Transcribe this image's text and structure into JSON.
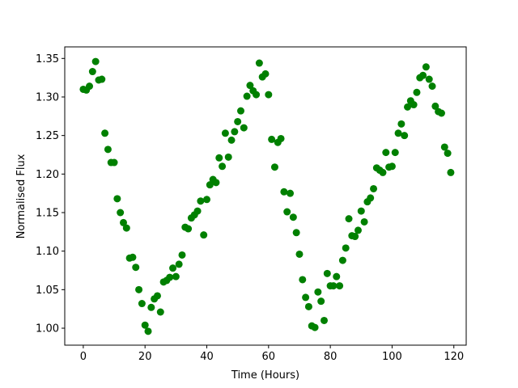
{
  "chart_data": {
    "type": "scatter",
    "xlabel": "Time (Hours)",
    "ylabel": "Normalised Flux",
    "xlim": [
      -6,
      124
    ],
    "ylim": [
      0.978,
      1.365
    ],
    "xticks": [
      0,
      20,
      40,
      60,
      80,
      100,
      120
    ],
    "xtick_labels": [
      "0",
      "20",
      "40",
      "60",
      "80",
      "100",
      "120"
    ],
    "yticks": [
      1.0,
      1.05,
      1.1,
      1.15,
      1.2,
      1.25,
      1.3,
      1.35
    ],
    "ytick_labels": [
      "1.00",
      "1.05",
      "1.10",
      "1.15",
      "1.20",
      "1.25",
      "1.30",
      "1.35"
    ],
    "grid": false,
    "marker_color": "#008000",
    "series": [
      {
        "points": [
          [
            0,
            1.31
          ],
          [
            1,
            1.309
          ],
          [
            2,
            1.314
          ],
          [
            3,
            1.333
          ],
          [
            4,
            1.346
          ],
          [
            5,
            1.322
          ],
          [
            6,
            1.323
          ],
          [
            7,
            1.253
          ],
          [
            8,
            1.232
          ],
          [
            9,
            1.215
          ],
          [
            10,
            1.215
          ],
          [
            11,
            1.168
          ],
          [
            12,
            1.15
          ],
          [
            13,
            1.137
          ],
          [
            14,
            1.13
          ],
          [
            15,
            1.091
          ],
          [
            16,
            1.092
          ],
          [
            17,
            1.079
          ],
          [
            18,
            1.05
          ],
          [
            19,
            1.032
          ],
          [
            20,
            1.004
          ],
          [
            21,
            0.996
          ],
          [
            22,
            1.027
          ],
          [
            23,
            1.038
          ],
          [
            24,
            1.042
          ],
          [
            25,
            1.021
          ],
          [
            26,
            1.06
          ],
          [
            27,
            1.062
          ],
          [
            28,
            1.066
          ],
          [
            29,
            1.078
          ],
          [
            30,
            1.067
          ],
          [
            31,
            1.083
          ],
          [
            32,
            1.095
          ],
          [
            33,
            1.131
          ],
          [
            34,
            1.129
          ],
          [
            35,
            1.143
          ],
          [
            36,
            1.147
          ],
          [
            37,
            1.152
          ],
          [
            38,
            1.165
          ],
          [
            39,
            1.121
          ],
          [
            40,
            1.167
          ],
          [
            41,
            1.186
          ],
          [
            42,
            1.193
          ],
          [
            43,
            1.189
          ],
          [
            44,
            1.221
          ],
          [
            45,
            1.21
          ],
          [
            46,
            1.253
          ],
          [
            47,
            1.222
          ],
          [
            48,
            1.244
          ],
          [
            49,
            1.255
          ],
          [
            50,
            1.268
          ],
          [
            51,
            1.282
          ],
          [
            52,
            1.26
          ],
          [
            53,
            1.301
          ],
          [
            54,
            1.315
          ],
          [
            55,
            1.308
          ],
          [
            56,
            1.303
          ],
          [
            57,
            1.344
          ],
          [
            58,
            1.326
          ],
          [
            59,
            1.33
          ],
          [
            60,
            1.303
          ],
          [
            61,
            1.245
          ],
          [
            62,
            1.209
          ],
          [
            63,
            1.241
          ],
          [
            64,
            1.246
          ],
          [
            65,
            1.177
          ],
          [
            66,
            1.151
          ],
          [
            67,
            1.175
          ],
          [
            68,
            1.144
          ],
          [
            69,
            1.124
          ],
          [
            70,
            1.096
          ],
          [
            71,
            1.063
          ],
          [
            72,
            1.04
          ],
          [
            73,
            1.028
          ],
          [
            74,
            1.003
          ],
          [
            75,
            1.001
          ],
          [
            76,
            1.047
          ],
          [
            77,
            1.035
          ],
          [
            78,
            1.01
          ],
          [
            79,
            1.071
          ],
          [
            80,
            1.055
          ],
          [
            81,
            1.055
          ],
          [
            82,
            1.067
          ],
          [
            83,
            1.055
          ],
          [
            84,
            1.088
          ],
          [
            85,
            1.104
          ],
          [
            86,
            1.142
          ],
          [
            87,
            1.12
          ],
          [
            88,
            1.119
          ],
          [
            89,
            1.127
          ],
          [
            90,
            1.152
          ],
          [
            91,
            1.138
          ],
          [
            92,
            1.164
          ],
          [
            93,
            1.169
          ],
          [
            94,
            1.181
          ],
          [
            95,
            1.208
          ],
          [
            96,
            1.205
          ],
          [
            97,
            1.202
          ],
          [
            98,
            1.228
          ],
          [
            99,
            1.209
          ],
          [
            100,
            1.21
          ],
          [
            101,
            1.228
          ],
          [
            102,
            1.253
          ],
          [
            103,
            1.265
          ],
          [
            104,
            1.25
          ],
          [
            105,
            1.287
          ],
          [
            106,
            1.295
          ],
          [
            107,
            1.29
          ],
          [
            108,
            1.306
          ],
          [
            109,
            1.325
          ],
          [
            110,
            1.328
          ],
          [
            111,
            1.339
          ],
          [
            112,
            1.323
          ],
          [
            113,
            1.314
          ],
          [
            114,
            1.288
          ],
          [
            115,
            1.281
          ],
          [
            116,
            1.279
          ],
          [
            117,
            1.235
          ],
          [
            118,
            1.227
          ],
          [
            119,
            1.202
          ]
        ]
      }
    ]
  }
}
